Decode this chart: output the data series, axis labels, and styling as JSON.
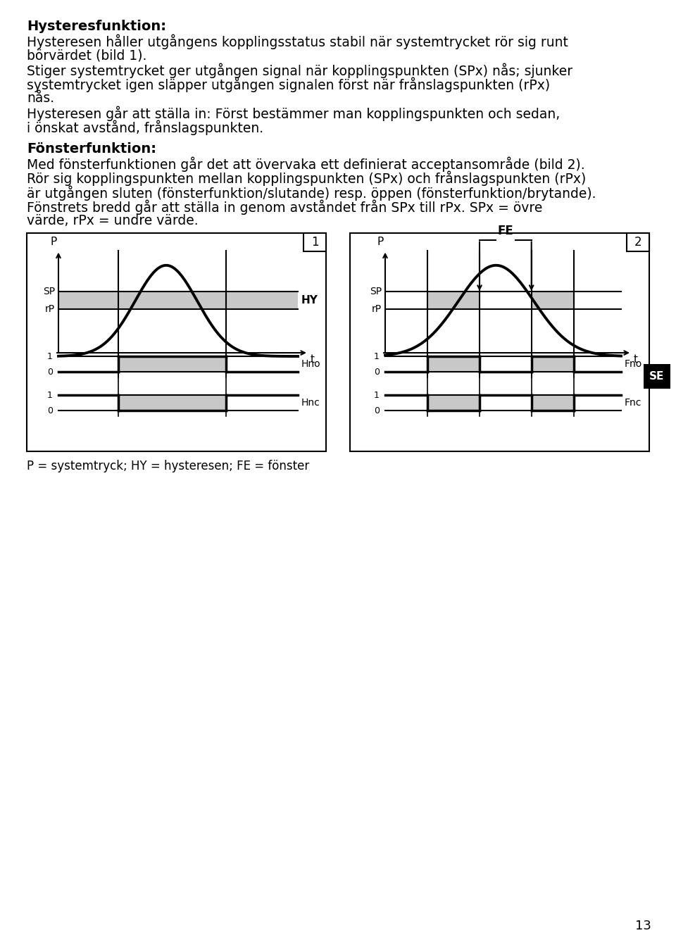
{
  "title_text": "Hysteresfunktion",
  "para1": "Hysteresen håller utgångens kopplingsstatus stabil när systemtrycket rör sig runt\nbörvärdet (bild 1).",
  "para2": "Stiger systemtrycket ger utgången signal när kopplingspunkten (SPx) nås; sjunker\nsystemtrycket igen släpper utgången signalen först när frånslagspunkten (rPx)\nnås.",
  "para3": "Hysteresen går att ställa in: Först bestämmer man kopplingspunkten och sedan,\ni önskat avstånd, frånslagspunkten.",
  "title2": "Fönsterfunktion",
  "para4": "Med fönsterfunktionen går det att övervaka ett definierat acceptansområde (bild 2).\nRör sig kopplingspunkten mellan kopplingspunkten (SPx) och frånslagspunkten (rPx)\när utgången sluten (fönsterfunktion/slutande) resp. öppen (fönsterfunktion/brytande).\nFönstrets bredd går att ställa in genom avståndet från SPx till rPx. SPx = övre\nvärde, rPx = undre värde.",
  "caption": "P = systemtryck; HY = hysteresen; FE = fönster",
  "page_num": "13",
  "bg_color": "#ffffff",
  "text_color": "#000000",
  "gray_fill": "#c8c8c8",
  "line_color": "#000000",
  "font_size_body": 13.5,
  "font_size_title": 14,
  "font_size_small": 10
}
